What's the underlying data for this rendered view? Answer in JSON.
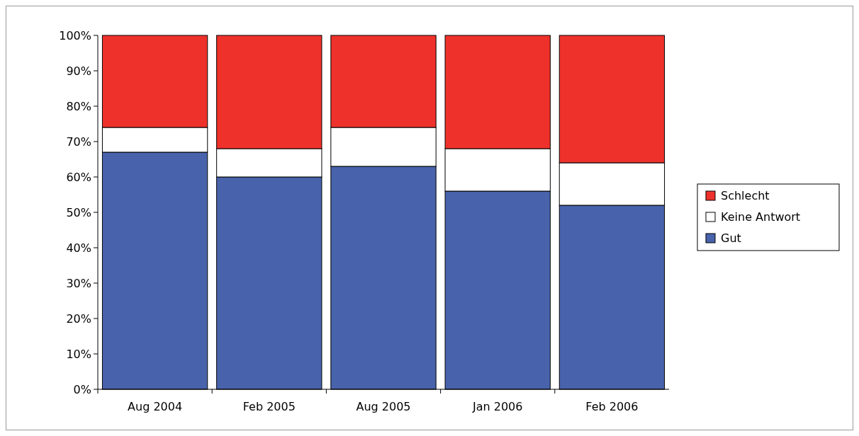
{
  "chart_data": {
    "type": "bar",
    "stacked": true,
    "categories": [
      "Aug 2004",
      "Feb 2005",
      "Aug 2005",
      "Jan 2006",
      "Feb 2006"
    ],
    "series": [
      {
        "name": "Gut",
        "color": "#4863ab",
        "values": [
          67,
          60,
          63,
          56,
          52
        ]
      },
      {
        "name": "Keine Antwort",
        "color": "#ffffff",
        "values": [
          7,
          8,
          11,
          12,
          12
        ]
      },
      {
        "name": "Schlecht",
        "color": "#ee322b",
        "values": [
          26,
          32,
          26,
          32,
          36
        ]
      }
    ],
    "ylim": [
      0,
      100
    ],
    "yticks": [
      {
        "value": 0,
        "label": "0%"
      },
      {
        "value": 10,
        "label": "10%"
      },
      {
        "value": 20,
        "label": "20%"
      },
      {
        "value": 30,
        "label": "30%"
      },
      {
        "value": 40,
        "label": "40%"
      },
      {
        "value": 50,
        "label": "50%"
      },
      {
        "value": 60,
        "label": "60%"
      },
      {
        "value": 70,
        "label": "70%"
      },
      {
        "value": 80,
        "label": "80%"
      },
      {
        "value": 90,
        "label": "90%"
      },
      {
        "value": 100,
        "label": "100%"
      }
    ],
    "legend": "right",
    "grid": false
  }
}
